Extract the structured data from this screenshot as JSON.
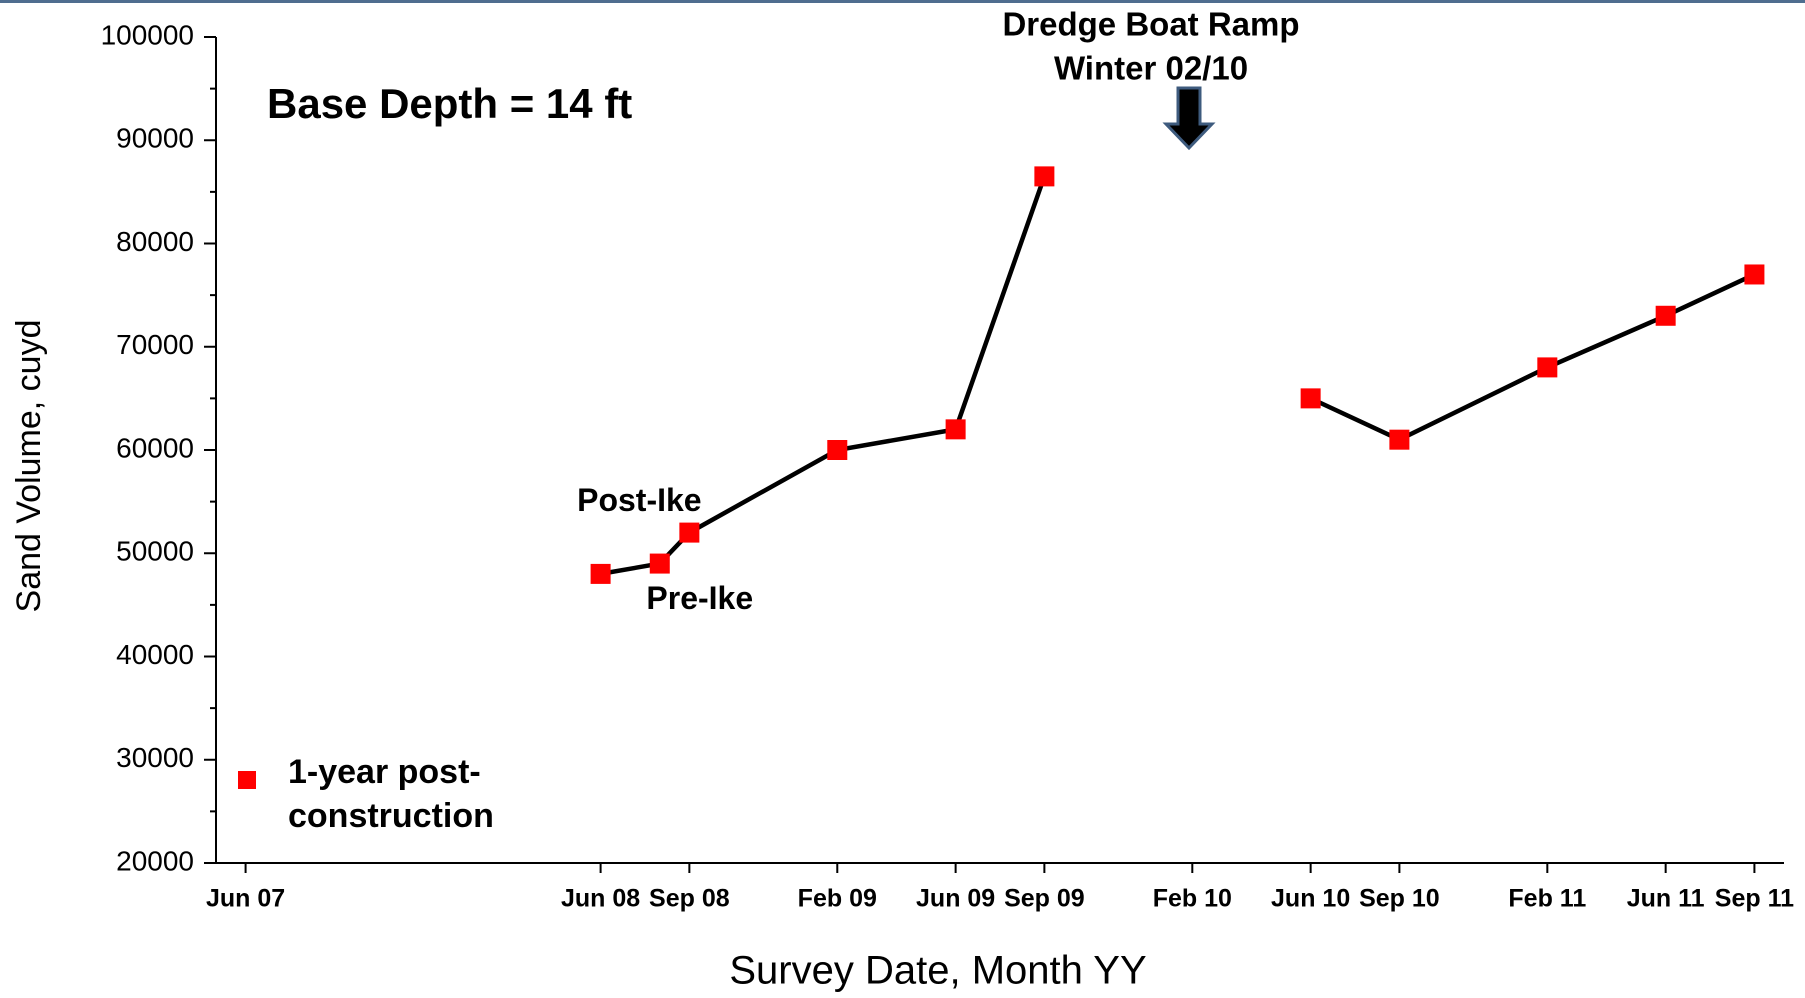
{
  "chart_data": {
    "type": "line",
    "x_label": "Survey Date, Month YY",
    "y_label": "Sand Volume, cuyd",
    "annotations": [
      "Base Depth = 14 ft",
      "Dredge Boat Ramp",
      "Winter 02/10",
      "Post-Ike",
      "Pre-Ike"
    ],
    "x": [
      "2008-06",
      "2008-08",
      "2008-09",
      "2009-02",
      "2009-06",
      "2009-09",
      "2010-02",
      "2010-06",
      "2010-09",
      "2011-02",
      "2011-06",
      "2011-09"
    ],
    "series": [
      {
        "name": "1-year post-construction",
        "color": "#ff0000",
        "values": [
          48000,
          49000,
          52000,
          60000,
          62000,
          86500,
          null,
          65000,
          61000,
          68000,
          73000,
          77000
        ]
      }
    ],
    "xlim": [
      "2007-05",
      "2011-10"
    ],
    "xticks": [
      {
        "value": "2007-06",
        "label": "Jun 07"
      },
      {
        "value": "2008-06",
        "label": "Jun 08"
      },
      {
        "value": "2008-09",
        "label": "Sep 08"
      },
      {
        "value": "2009-02",
        "label": "Feb 09"
      },
      {
        "value": "2009-06",
        "label": "Jun 09"
      },
      {
        "value": "2009-09",
        "label": "Sep 09"
      },
      {
        "value": "2010-02",
        "label": "Feb 10"
      },
      {
        "value": "2010-06",
        "label": "Jun 10"
      },
      {
        "value": "2010-09",
        "label": "Sep 10"
      },
      {
        "value": "2011-02",
        "label": "Feb 11"
      },
      {
        "value": "2011-06",
        "label": "Jun 11"
      },
      {
        "value": "2011-09",
        "label": "Sep 11"
      }
    ],
    "ylim": [
      20000,
      100000
    ],
    "yticks": [
      20000,
      30000,
      40000,
      50000,
      60000,
      70000,
      80000,
      90000,
      100000
    ],
    "grid": false,
    "legend": "lower left"
  }
}
